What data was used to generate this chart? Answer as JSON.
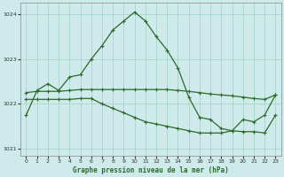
{
  "title": "Graphe pression niveau de la mer (hPa)",
  "background_color": "#ceeaea",
  "grid_color": "#a8d4cc",
  "line_color": "#2d6a2d",
  "xlim": [
    -0.5,
    23.5
  ],
  "ylim": [
    1020.85,
    1024.25
  ],
  "yticks": [
    1021,
    1022,
    1023,
    1024
  ],
  "xticks": [
    0,
    1,
    2,
    3,
    4,
    5,
    6,
    7,
    8,
    9,
    10,
    11,
    12,
    13,
    14,
    15,
    16,
    17,
    18,
    19,
    20,
    21,
    22,
    23
  ],
  "line1_x": [
    0,
    1,
    2,
    3,
    4,
    5,
    6,
    7,
    8,
    9,
    10,
    11,
    12,
    13,
    14,
    15,
    16,
    17,
    18,
    19,
    20,
    21,
    22,
    23
  ],
  "line1_y": [
    1021.75,
    1022.3,
    1022.45,
    1022.3,
    1022.6,
    1022.65,
    1023.0,
    1023.3,
    1023.65,
    1023.85,
    1024.05,
    1023.85,
    1023.5,
    1023.2,
    1022.8,
    1022.15,
    1021.7,
    1021.65,
    1021.45,
    1021.4,
    1021.65,
    1021.6,
    1021.75,
    1022.2
  ],
  "line2_x": [
    0,
    1,
    2,
    3,
    4,
    5,
    6,
    7,
    8,
    9,
    10,
    11,
    12,
    13,
    14,
    15,
    16,
    17,
    18,
    19,
    20,
    21,
    22,
    23
  ],
  "line2_y": [
    1022.25,
    1022.28,
    1022.28,
    1022.28,
    1022.3,
    1022.32,
    1022.32,
    1022.32,
    1022.32,
    1022.32,
    1022.32,
    1022.32,
    1022.32,
    1022.32,
    1022.3,
    1022.28,
    1022.25,
    1022.22,
    1022.2,
    1022.18,
    1022.15,
    1022.12,
    1022.1,
    1022.2
  ],
  "line3_x": [
    0,
    1,
    2,
    3,
    4,
    5,
    6,
    7,
    8,
    9,
    10,
    11,
    12,
    13,
    14,
    15,
    16,
    17,
    18,
    19,
    20,
    21,
    22,
    23
  ],
  "line3_y": [
    1022.1,
    1022.1,
    1022.1,
    1022.1,
    1022.1,
    1022.12,
    1022.12,
    1022.0,
    1021.9,
    1021.8,
    1021.7,
    1021.6,
    1021.55,
    1021.5,
    1021.45,
    1021.4,
    1021.35,
    1021.35,
    1021.35,
    1021.4,
    1021.38,
    1021.38,
    1021.35,
    1021.75
  ]
}
